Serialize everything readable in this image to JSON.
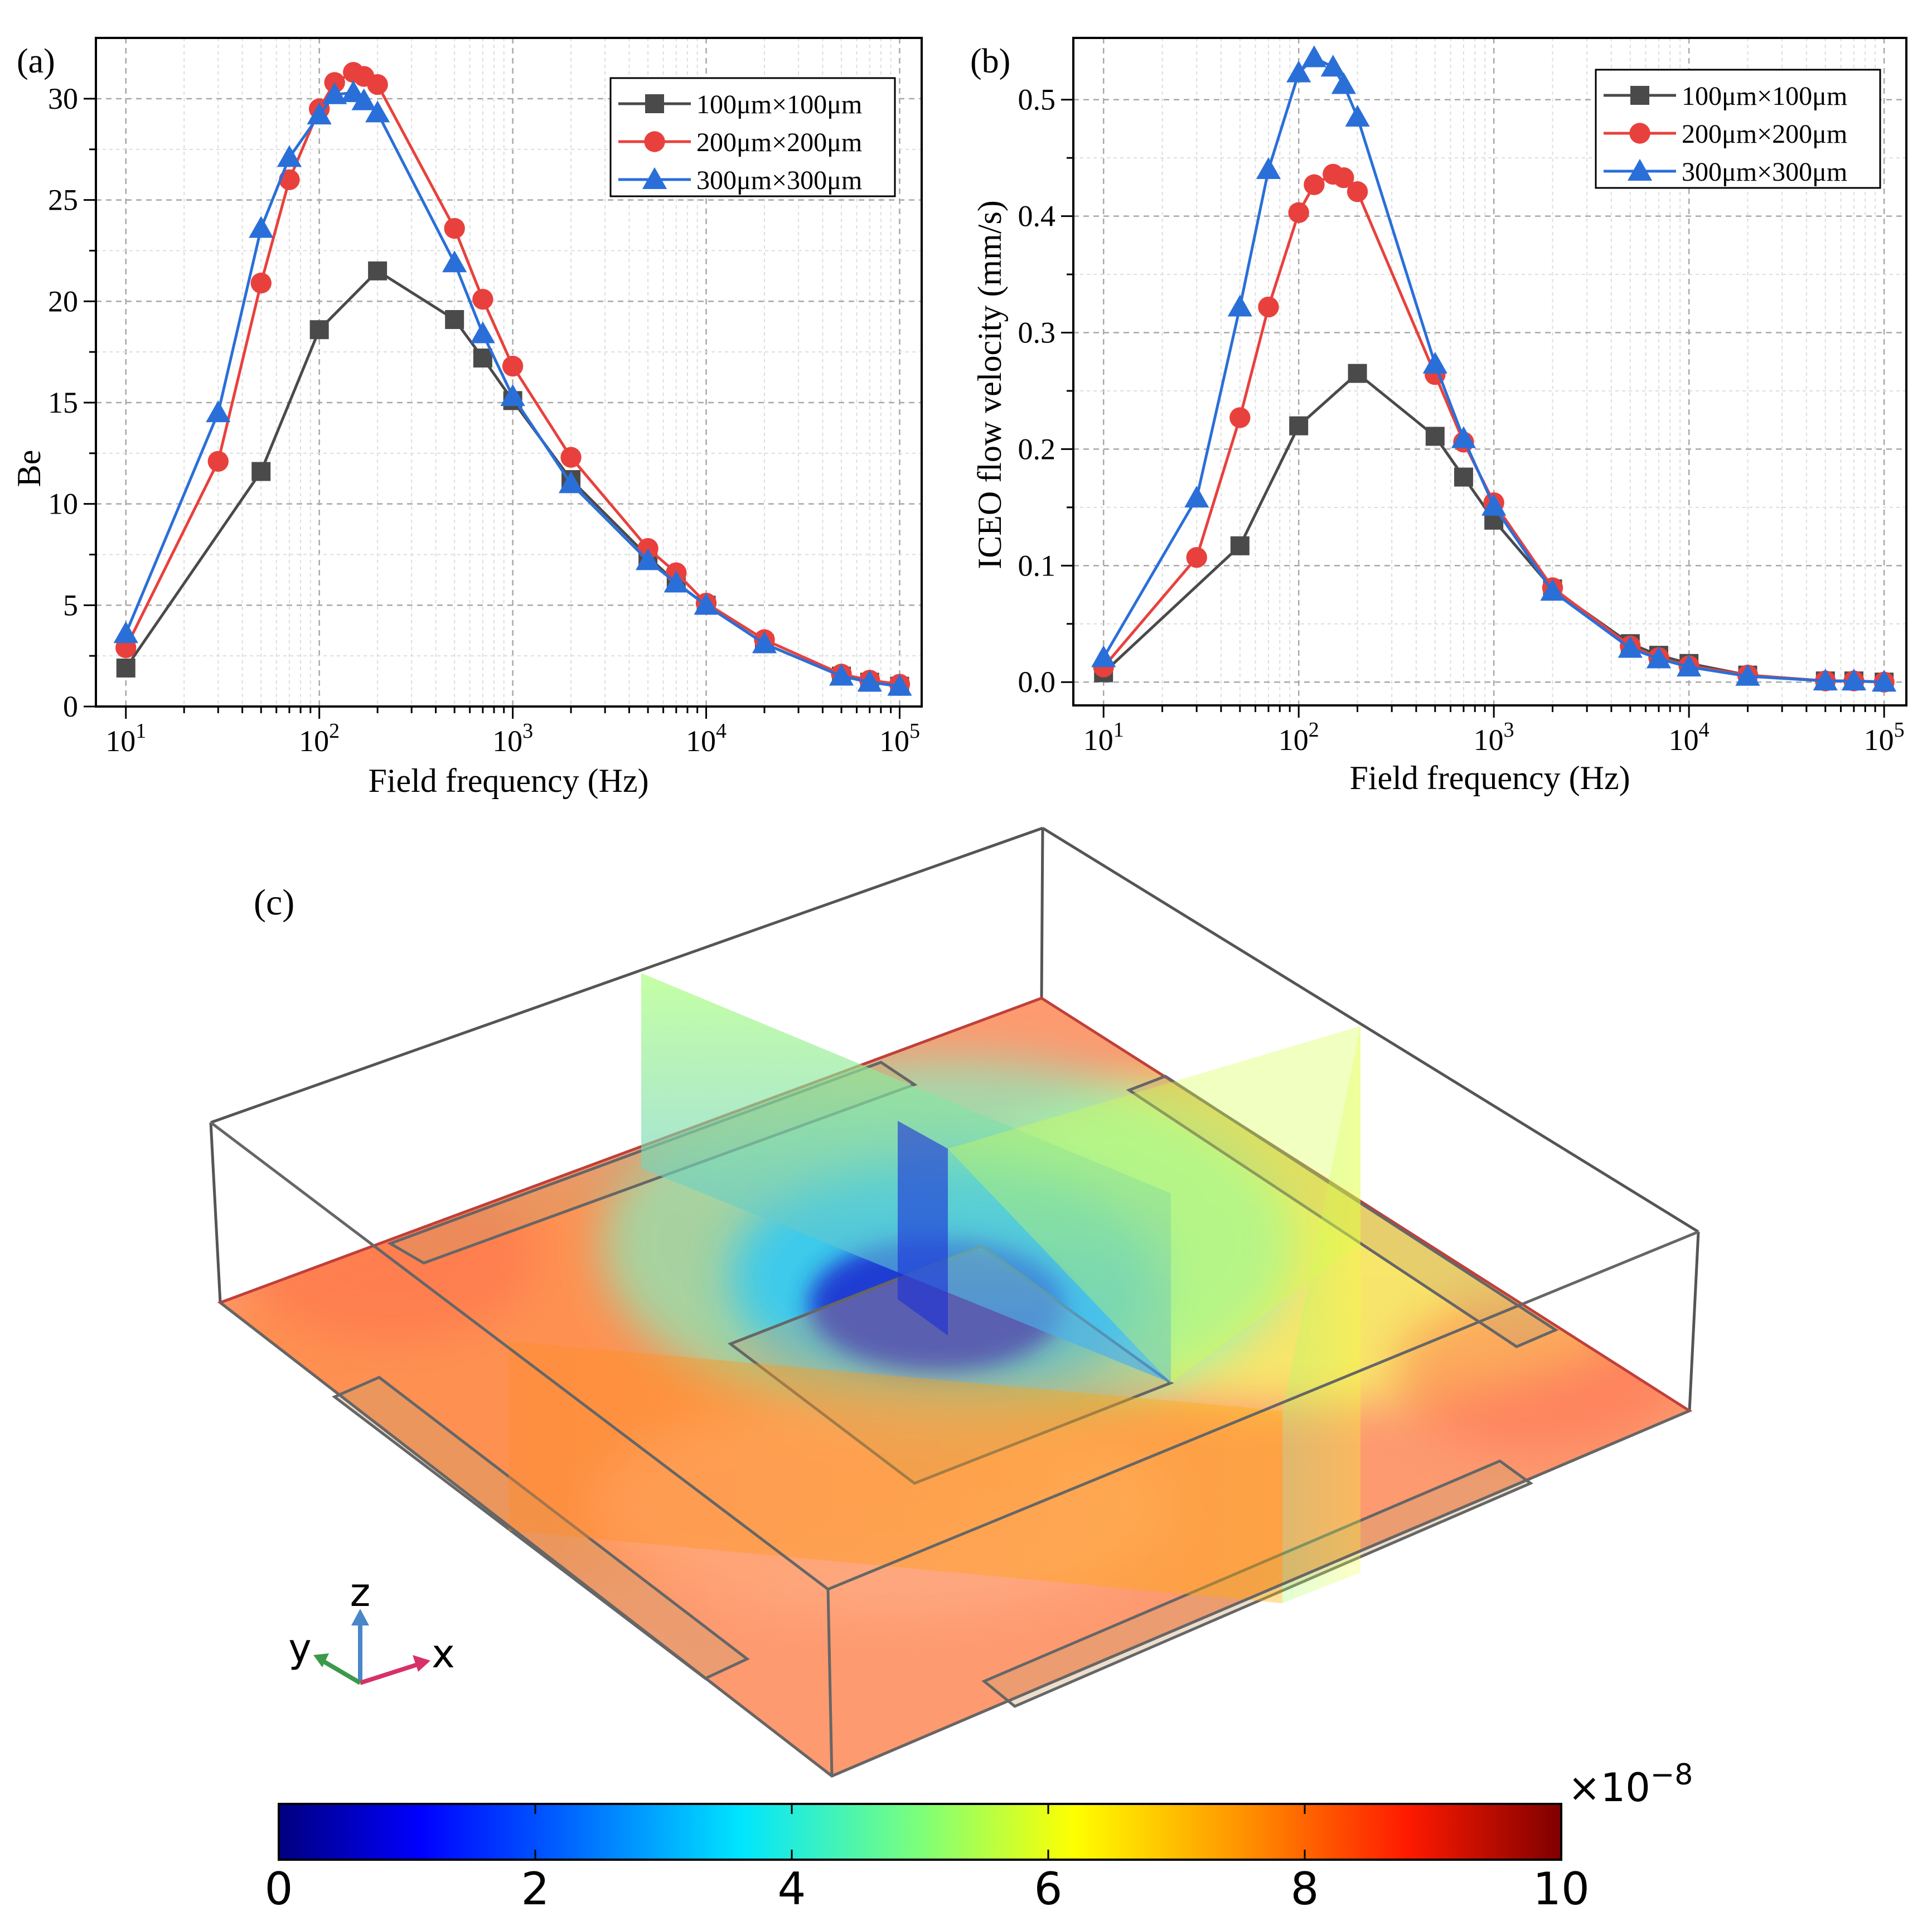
{
  "chart_data": [
    {
      "panel": "(a)",
      "type": "line",
      "xscale": "log",
      "xlim": [
        7,
        130000
      ],
      "ylim": [
        0,
        33
      ],
      "xlabel": "Field frequency (Hz)",
      "ylabel": "Be",
      "xticks": [
        {
          "value": 10,
          "base": "10",
          "exp": "1"
        },
        {
          "value": 100,
          "base": "10",
          "exp": "2"
        },
        {
          "value": 1000,
          "base": "10",
          "exp": "3"
        },
        {
          "value": 10000,
          "base": "10",
          "exp": "4"
        },
        {
          "value": 100000,
          "base": "10",
          "exp": "5"
        }
      ],
      "yticks": [
        0,
        5,
        10,
        15,
        20,
        25,
        30
      ],
      "legend_position": "top-right",
      "series": [
        {
          "name": "100μm×100μm",
          "color": "#4a4a4a",
          "marker": "square",
          "x": [
            10,
            50,
            100,
            200,
            500,
            700,
            1000,
            2000,
            5000,
            7000,
            10000,
            20000,
            50000,
            70000,
            100000
          ],
          "y": [
            1.9,
            11.6,
            18.6,
            21.5,
            19.1,
            17.2,
            15.1,
            11.2,
            7.4,
            6.1,
            5.0,
            3.1,
            1.5,
            1.2,
            1.0
          ]
        },
        {
          "name": "200μm×200μm",
          "color": "#e8413d",
          "marker": "circle",
          "x": [
            10,
            30,
            50,
            70,
            100,
            120,
            150,
            170,
            200,
            500,
            700,
            1000,
            2000,
            5000,
            7000,
            10000,
            20000,
            50000,
            70000,
            100000
          ],
          "y": [
            2.9,
            12.1,
            20.9,
            26.0,
            29.5,
            30.8,
            31.3,
            31.1,
            30.7,
            23.6,
            20.1,
            16.8,
            12.3,
            7.8,
            6.6,
            5.1,
            3.3,
            1.6,
            1.3,
            1.1
          ]
        },
        {
          "name": "300μm×300μm",
          "color": "#2a6fd8",
          "marker": "triangle",
          "x": [
            10,
            30,
            50,
            70,
            100,
            120,
            150,
            170,
            200,
            500,
            700,
            1000,
            2000,
            5000,
            7000,
            10000,
            20000,
            50000,
            70000,
            100000
          ],
          "y": [
            3.6,
            14.5,
            23.6,
            27.1,
            29.2,
            30.2,
            30.3,
            29.9,
            29.3,
            21.9,
            18.4,
            15.3,
            11.0,
            7.2,
            6.1,
            5.0,
            3.1,
            1.5,
            1.2,
            1.0
          ]
        }
      ]
    },
    {
      "panel": "(b)",
      "type": "line",
      "xscale": "log",
      "xlim": [
        7,
        130000
      ],
      "ylim": [
        -0.02,
        0.553
      ],
      "xlabel": "Field frequency (Hz)",
      "ylabel": "ICEO flow velocity (mm/s)",
      "xticks": [
        {
          "value": 10,
          "base": "10",
          "exp": "1"
        },
        {
          "value": 100,
          "base": "10",
          "exp": "2"
        },
        {
          "value": 1000,
          "base": "10",
          "exp": "3"
        },
        {
          "value": 10000,
          "base": "10",
          "exp": "4"
        },
        {
          "value": 100000,
          "base": "10",
          "exp": "5"
        }
      ],
      "yticks": [
        "0.0",
        "0.1",
        "0.2",
        "0.3",
        "0.4",
        "0.5"
      ],
      "legend_position": "top-right",
      "series": [
        {
          "name": "100μm×100μm",
          "color": "#4a4a4a",
          "marker": "square",
          "x": [
            10,
            50,
            100,
            200,
            500,
            700,
            1000,
            2000,
            5000,
            7000,
            10000,
            20000,
            50000,
            70000,
            100000
          ],
          "y": [
            0.008,
            0.117,
            0.22,
            0.265,
            0.211,
            0.176,
            0.139,
            0.08,
            0.033,
            0.023,
            0.016,
            0.006,
            0.001,
            0.001,
            0.0
          ]
        },
        {
          "name": "200μm×200μm",
          "color": "#e8413d",
          "marker": "circle",
          "x": [
            10,
            30,
            50,
            70,
            100,
            120,
            150,
            170,
            200,
            500,
            700,
            1000,
            2000,
            5000,
            7000,
            10000,
            20000,
            50000,
            70000,
            100000
          ],
          "y": [
            0.013,
            0.107,
            0.227,
            0.322,
            0.403,
            0.427,
            0.436,
            0.433,
            0.421,
            0.264,
            0.206,
            0.154,
            0.081,
            0.031,
            0.021,
            0.014,
            0.006,
            0.001,
            0.001,
            0.0
          ]
        },
        {
          "name": "300μm×300μm",
          "color": "#2a6fd8",
          "marker": "triangle",
          "x": [
            10,
            30,
            50,
            70,
            100,
            120,
            150,
            170,
            200,
            500,
            700,
            1000,
            2000,
            5000,
            7000,
            10000,
            20000,
            50000,
            70000,
            100000
          ],
          "y": [
            0.021,
            0.158,
            0.322,
            0.44,
            0.523,
            0.536,
            0.528,
            0.513,
            0.485,
            0.273,
            0.209,
            0.151,
            0.078,
            0.029,
            0.02,
            0.013,
            0.005,
            0.001,
            0.001,
            0.0
          ]
        }
      ]
    },
    {
      "panel": "(c)",
      "type": "heatmap",
      "description_label": "(c)",
      "axes_triad": {
        "z": "z",
        "y": "y",
        "x": "x"
      },
      "colorbar": {
        "min": 0,
        "max": 10,
        "ticks": [
          "0",
          "2",
          "4",
          "6",
          "8",
          "10"
        ],
        "multiplier": "×10",
        "multiplier_exp": "−8",
        "colormap": "jet"
      }
    }
  ]
}
